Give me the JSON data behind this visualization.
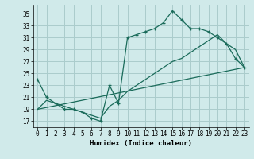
{
  "xlabel": "Humidex (Indice chaleur)",
  "background_color": "#d0eaea",
  "grid_color": "#aacccc",
  "line_color": "#1a6b5a",
  "xlim": [
    -0.5,
    23.5
  ],
  "ylim": [
    16,
    36.5
  ],
  "xticks": [
    0,
    1,
    2,
    3,
    4,
    5,
    6,
    7,
    8,
    9,
    10,
    11,
    12,
    13,
    14,
    15,
    16,
    17,
    18,
    19,
    20,
    21,
    22,
    23
  ],
  "yticks": [
    17,
    19,
    21,
    23,
    25,
    27,
    29,
    31,
    33,
    35
  ],
  "curve1_x": [
    0,
    1,
    2,
    3,
    4,
    5,
    6,
    7,
    8,
    9,
    10,
    11,
    12,
    13,
    14,
    15,
    16,
    17,
    18,
    19,
    20,
    21,
    22,
    23
  ],
  "curve1_y": [
    24,
    21,
    20,
    19,
    19,
    18.5,
    17.5,
    17,
    23,
    20,
    31,
    31.5,
    32,
    32.5,
    33.5,
    35.5,
    34,
    32.5,
    32.5,
    32,
    31,
    30,
    27.5,
    26
  ],
  "curve2_x": [
    0,
    23
  ],
  "curve2_y": [
    19,
    26
  ],
  "curve3_x": [
    0,
    1,
    2,
    3,
    4,
    5,
    6,
    7,
    8,
    9,
    10,
    11,
    12,
    13,
    14,
    15,
    16,
    17,
    18,
    19,
    20,
    21,
    22,
    23
  ],
  "curve3_y": [
    19,
    20.5,
    20,
    19.5,
    19,
    18.5,
    18,
    17.5,
    19.5,
    20.5,
    22,
    23,
    24,
    25,
    26,
    27,
    27.5,
    28.5,
    29.5,
    30.5,
    31.5,
    30,
    29,
    26
  ]
}
